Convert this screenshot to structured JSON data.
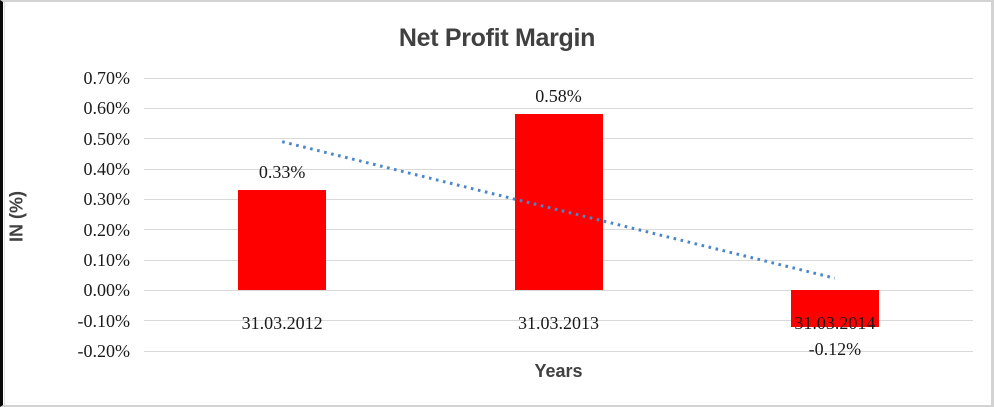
{
  "chart_data": {
    "type": "bar",
    "title": "Net Profit Margin",
    "xlabel": "Years",
    "ylabel": "IN (%)",
    "categories": [
      "31.03.2012",
      "31.03.2013",
      "31.03.2014"
    ],
    "values": [
      0.33,
      0.58,
      -0.12
    ],
    "data_labels": [
      "0.33%",
      "0.58%",
      "-0.12%"
    ],
    "y_tick_labels": [
      "0.70%",
      "0.60%",
      "0.50%",
      "0.40%",
      "0.30%",
      "0.20%",
      "0.10%",
      "0.00%",
      "-0.10%",
      "-0.20%"
    ],
    "y_tick_values": [
      0.7,
      0.6,
      0.5,
      0.4,
      0.3,
      0.2,
      0.1,
      0.0,
      -0.1,
      -0.2
    ],
    "ylim": [
      -0.2,
      0.7
    ],
    "grid": true,
    "legend": "none",
    "bar_color": "#ff0000",
    "gridline_color": "#d9d9d9",
    "label_color": "#1a1a1a",
    "title_color": "#404040",
    "trendline": {
      "type": "linear",
      "style": "dotted",
      "color": "#4a86c8",
      "start_value": 0.49,
      "end_value": 0.04
    }
  }
}
